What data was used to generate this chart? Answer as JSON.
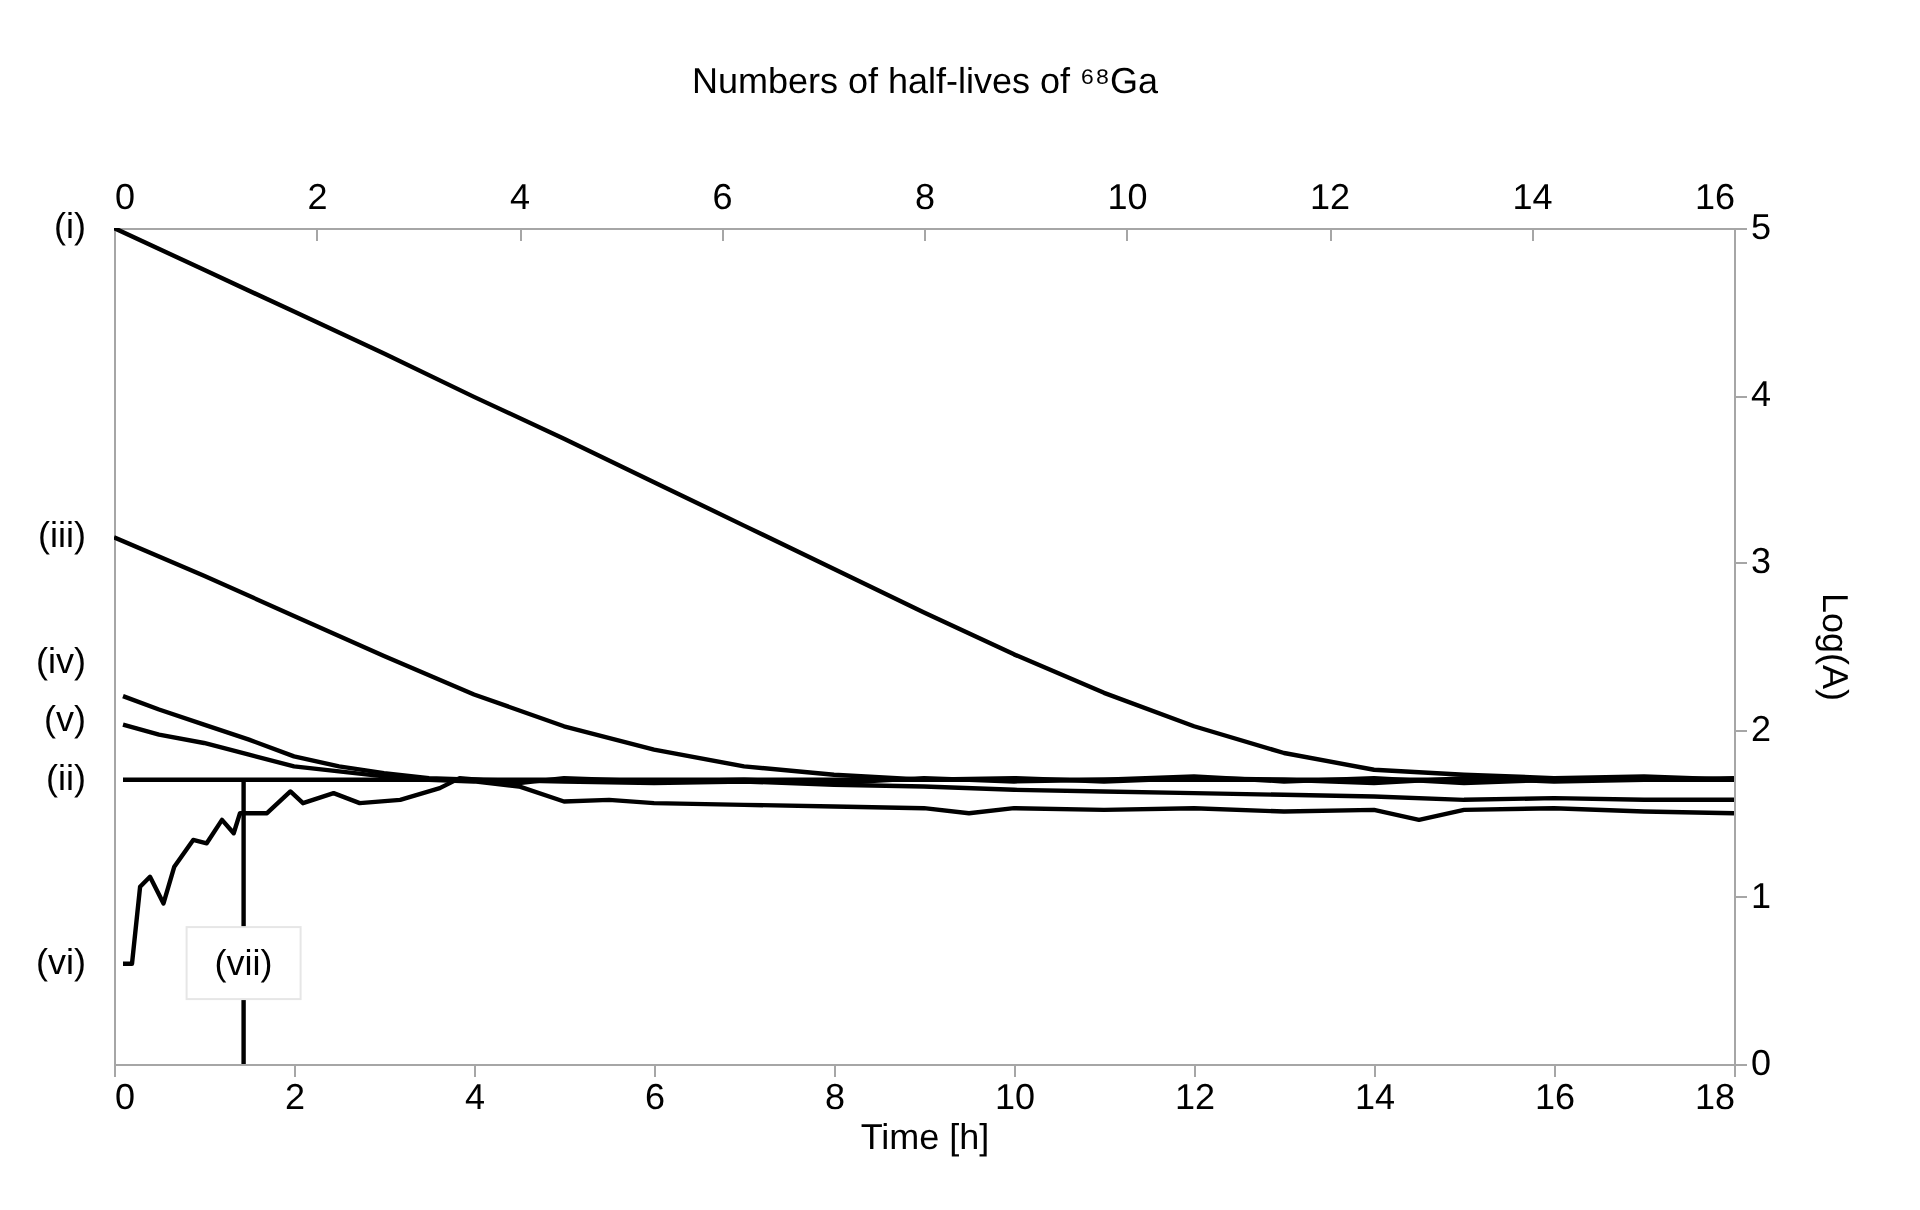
{
  "chart_data": {
    "type": "line",
    "xlabel": "Time [h]",
    "x2label": "Numbers of half-lives of ⁶⁸Ga",
    "y2label": "Log(A)",
    "xlim": [
      0,
      18
    ],
    "xticks": [
      0,
      2,
      4,
      6,
      8,
      10,
      12,
      14,
      16,
      18
    ],
    "x2lim": [
      0,
      16
    ],
    "x2ticks": [
      0,
      2,
      4,
      6,
      8,
      10,
      12,
      14,
      16
    ],
    "y2lim": [
      0,
      5
    ],
    "y2ticks": [
      0,
      1,
      2,
      3,
      4,
      5
    ],
    "series": [
      {
        "name": "(i)",
        "color": "#000000",
        "axis": "y2",
        "x": [
          0,
          1,
          2,
          3,
          4,
          5,
          6,
          7,
          8,
          9,
          10,
          11,
          12,
          13,
          14,
          15,
          16,
          17,
          18
        ],
        "values": [
          5.0,
          4.75,
          4.5,
          4.25,
          3.99,
          3.74,
          3.48,
          3.22,
          2.96,
          2.7,
          2.45,
          2.22,
          2.02,
          1.86,
          1.76,
          1.73,
          1.71,
          1.72,
          1.7
        ]
      },
      {
        "name": "(ii)",
        "color": "#000000",
        "axis": "y2",
        "x": [
          0.1,
          18
        ],
        "values": [
          1.7,
          1.7
        ]
      },
      {
        "name": "(iii)",
        "color": "#000000",
        "axis": "y2",
        "x": [
          0,
          1,
          2,
          3,
          4,
          5,
          6,
          7,
          8,
          9,
          10,
          11,
          12,
          13,
          14,
          15,
          16,
          17,
          18
        ],
        "values": [
          3.15,
          2.92,
          2.68,
          2.44,
          2.21,
          2.02,
          1.88,
          1.78,
          1.73,
          1.7,
          1.71,
          1.69,
          1.71,
          1.7,
          1.68,
          1.71,
          1.69,
          1.7,
          1.71
        ]
      },
      {
        "name": "(iv)",
        "color": "#000000",
        "axis": "y2",
        "x": [
          0.1,
          0.5,
          1,
          1.5,
          2,
          2.5,
          3,
          3.5,
          4,
          5,
          6,
          7,
          8,
          9,
          10,
          11,
          12,
          13,
          14,
          15,
          16,
          17,
          18
        ],
        "values": [
          2.2,
          2.12,
          2.03,
          1.94,
          1.84,
          1.78,
          1.74,
          1.71,
          1.7,
          1.69,
          1.68,
          1.69,
          1.67,
          1.66,
          1.64,
          1.63,
          1.62,
          1.61,
          1.6,
          1.58,
          1.59,
          1.58,
          1.58
        ]
      },
      {
        "name": "(v)",
        "color": "#000000",
        "axis": "y2",
        "x": [
          0.1,
          0.5,
          1,
          1.5,
          2,
          2.5,
          3,
          3.5,
          4,
          4.5,
          5,
          5.5,
          6,
          7,
          8,
          9,
          9.5,
          10,
          11,
          12,
          13,
          14,
          14.5,
          15,
          16,
          17,
          18
        ],
        "values": [
          2.03,
          1.97,
          1.92,
          1.85,
          1.78,
          1.75,
          1.72,
          1.7,
          1.69,
          1.66,
          1.57,
          1.58,
          1.56,
          1.55,
          1.54,
          1.53,
          1.5,
          1.53,
          1.52,
          1.53,
          1.51,
          1.52,
          1.46,
          1.52,
          1.53,
          1.51,
          1.5
        ]
      },
      {
        "name": "(vi)",
        "color": "#000000",
        "axis": "y2",
        "x": [
          0.1,
          0.2,
          0.29,
          0.4,
          0.55,
          0.67,
          0.88,
          1.03,
          1.2,
          1.33,
          1.4,
          1.7,
          1.96,
          2.1,
          2.44,
          2.73,
          3.18,
          3.62,
          3.84,
          4.5,
          5,
          6,
          7,
          8,
          9,
          10,
          11,
          12,
          13,
          14,
          15,
          16,
          17,
          18
        ],
        "values": [
          0.6,
          0.6,
          1.06,
          1.12,
          0.96,
          1.18,
          1.34,
          1.32,
          1.46,
          1.38,
          1.5,
          1.5,
          1.63,
          1.56,
          1.62,
          1.56,
          1.58,
          1.65,
          1.71,
          1.68,
          1.71,
          1.69,
          1.7,
          1.68,
          1.71,
          1.69,
          1.7,
          1.72,
          1.69,
          1.71,
          1.68,
          1.7,
          1.71,
          1.7
        ]
      },
      {
        "name": "(vii)",
        "color": "#000000",
        "axis": "y2",
        "x": [
          1.44,
          1.44
        ],
        "values": [
          0,
          1.69
        ]
      }
    ]
  }
}
